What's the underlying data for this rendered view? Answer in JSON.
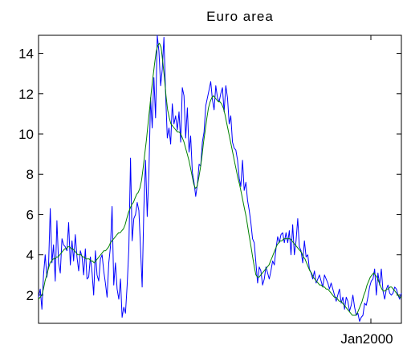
{
  "chart_data": {
    "type": "line",
    "title": "Euro area",
    "xlabel": "",
    "ylabel": "",
    "x_tick_labels": [
      "Jan2000"
    ],
    "y_ticks": [
      2,
      4,
      6,
      8,
      10,
      12,
      14
    ],
    "ylim": [
      0.6,
      14.9
    ],
    "xlim": [
      0,
      217
    ],
    "grid": false,
    "legend": "none",
    "series": [
      {
        "color": "#0000ff",
        "values": [
          1.9,
          2.3,
          1.3,
          3.0,
          4.0,
          2.9,
          3.5,
          6.3,
          3.6,
          4.5,
          2.7,
          5.7,
          3.6,
          3.1,
          4.8,
          4.5,
          4.4,
          4.2,
          5.6,
          3.5,
          4.7,
          3.7,
          5.0,
          3.9,
          3.2,
          4.2,
          3.9,
          3.0,
          4.3,
          2.8,
          2.9,
          3.9,
          3.1,
          2.0,
          4.2,
          3.0,
          2.7,
          3.8,
          4.0,
          3.2,
          2.6,
          1.9,
          3.6,
          4.4,
          6.4,
          2.5,
          3.6,
          2.3,
          1.8,
          2.8,
          0.9,
          1.4,
          1.1,
          2.5,
          4.3,
          8.8,
          4.7,
          5.8,
          6.0,
          6.6,
          6.2,
          4.3,
          2.4,
          6.3,
          8.7,
          5.9,
          8.1,
          11.8,
          10.3,
          12.8,
          10.8,
          15.2,
          14.1,
          12.4,
          13.2,
          14.8,
          12.0,
          9.8,
          10.3,
          9.5,
          11.5,
          10.5,
          10.9,
          10.2,
          11.1,
          9.6,
          12.3,
          11.9,
          9.8,
          11.3,
          9.1,
          9.9,
          8.1,
          7.6,
          6.9,
          7.5,
          8.5,
          8.4,
          9.6,
          10.1,
          11.4,
          11.8,
          12.2,
          12.6,
          11.7,
          11.2,
          12.4,
          11.8,
          11.6,
          12.0,
          12.3,
          11.1,
          12.4,
          11.8,
          10.5,
          10.9,
          9.6,
          9.3,
          9.2,
          8.7,
          7.8,
          7.4,
          8.7,
          7.2,
          7.6,
          6.7,
          6.2,
          5.6,
          4.8,
          4.6,
          3.6,
          2.6,
          3.4,
          3.2,
          2.5,
          2.8,
          3.4,
          3.1,
          2.8,
          3.2,
          3.7,
          3.5,
          4.3,
          4.9,
          4.6,
          5.0,
          5.1,
          4.6,
          5.1,
          4.6,
          5.2,
          4.0,
          5.5,
          4.0,
          4.7,
          5.8,
          4.4,
          4.2,
          3.6,
          4.7,
          3.9,
          4.0,
          3.3,
          3.1,
          2.8,
          3.2,
          2.6,
          2.8,
          3.0,
          2.7,
          2.4,
          3.0,
          2.8,
          2.6,
          2.3,
          2.6,
          2.3,
          2.0,
          1.7,
          2.0,
          2.3,
          1.6,
          1.9,
          1.3,
          1.9,
          1.7,
          1.2,
          1.5,
          2.0,
          1.4,
          1.0,
          1.1,
          0.7,
          0.9,
          1.0,
          1.6,
          1.5,
          1.9,
          2.4,
          2.7,
          2.8,
          3.3,
          2.0,
          3.1,
          2.5,
          3.3,
          2.2,
          1.8,
          2.3,
          2.5,
          2.1,
          2.0,
          2.1,
          2.4,
          2.3,
          2.0,
          1.8,
          2.1
        ]
      },
      {
        "color": "#008000",
        "values": [
          1.8,
          1.9,
          2.0,
          2.3,
          2.7,
          3.0,
          3.3,
          3.6,
          3.7,
          3.8,
          3.8,
          3.9,
          3.9,
          4.0,
          4.1,
          4.2,
          4.3,
          4.3,
          4.4,
          4.4,
          4.3,
          4.3,
          4.2,
          4.1,
          4.0,
          4.0,
          4.0,
          3.9,
          3.9,
          3.8,
          3.8,
          3.8,
          3.7,
          3.7,
          3.6,
          3.7,
          3.8,
          3.9,
          4.0,
          4.1,
          4.2,
          4.2,
          4.3,
          4.4,
          4.6,
          4.7,
          4.8,
          4.9,
          5.0,
          5.1,
          5.1,
          5.2,
          5.3,
          5.5,
          5.8,
          6.1,
          6.3,
          6.5,
          6.6,
          6.8,
          7.0,
          7.1,
          7.3,
          7.7,
          8.3,
          9.0,
          9.7,
          10.5,
          11.3,
          12.1,
          12.8,
          13.5,
          14.1,
          14.4,
          14.5,
          14.3,
          13.6,
          12.8,
          11.9,
          11.2,
          10.8,
          10.5,
          10.4,
          10.3,
          10.2,
          10.1,
          10.1,
          10.0,
          9.8,
          9.6,
          9.3,
          9.0,
          8.7,
          8.3,
          7.9,
          7.5,
          7.3,
          7.4,
          7.8,
          8.3,
          8.9,
          9.6,
          10.2,
          10.8,
          11.3,
          11.6,
          11.8,
          11.9,
          11.8,
          11.7,
          11.6,
          11.6,
          11.5,
          11.3,
          11.0,
          10.6,
          10.2,
          9.8,
          9.4,
          9.0,
          8.6,
          8.2,
          7.8,
          7.5,
          7.1,
          6.7,
          6.3,
          5.9,
          5.4,
          4.9,
          4.4,
          3.9,
          3.4,
          3.0,
          2.9,
          2.9,
          3.0,
          3.1,
          3.2,
          3.3,
          3.4,
          3.5,
          3.7,
          3.9,
          4.1,
          4.3,
          4.5,
          4.6,
          4.7,
          4.7,
          4.8,
          4.8,
          4.8,
          4.8,
          4.8,
          4.7,
          4.6,
          4.5,
          4.4,
          4.3,
          4.2,
          4.1,
          3.9,
          3.8,
          3.6,
          3.4,
          3.2,
          3.1,
          2.9,
          2.8,
          2.7,
          2.6,
          2.5,
          2.5,
          2.4,
          2.4,
          2.3,
          2.3,
          2.2,
          2.1,
          2.0,
          1.9,
          1.9,
          1.8,
          1.7,
          1.7,
          1.6,
          1.5,
          1.4,
          1.3,
          1.2,
          1.1,
          1.0,
          1.0,
          1.0,
          1.1,
          1.3,
          1.5,
          1.7,
          2.0,
          2.2,
          2.5,
          2.7,
          2.9,
          3.0,
          3.1,
          3.0,
          2.9,
          2.7,
          2.5,
          2.3,
          2.2,
          2.2,
          2.3,
          2.3,
          2.4,
          2.4,
          2.3,
          2.2,
          2.1,
          2.0,
          1.9,
          1.9
        ]
      }
    ]
  }
}
